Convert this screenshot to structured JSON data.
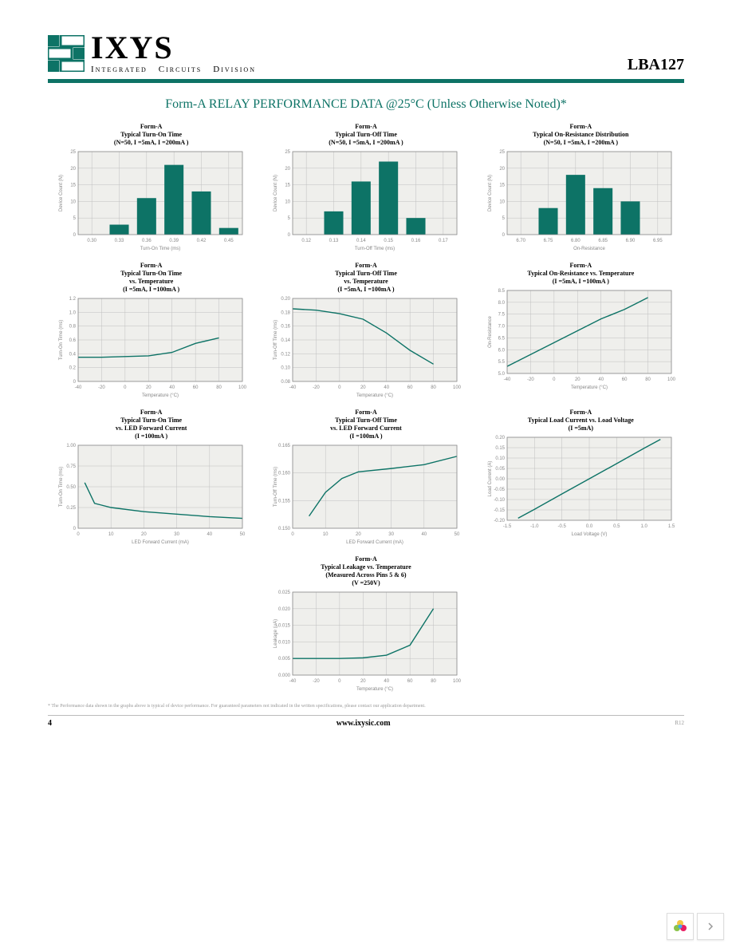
{
  "brand_color": "#0d7366",
  "logo": {
    "name": "IXYS",
    "tagline_words": [
      "Integrated",
      "Circuits",
      "Division"
    ]
  },
  "part_number": "LBA127",
  "page_title": "Form-A RELAY PERFORMANCE DATA @25°C (Unless Otherwise Noted)*",
  "footnote": "* The Performance data shown in the graphs above is typical of device performance. For guaranteed parameters not indicated in the written specifications, please contact our application department.",
  "footer": {
    "page": "4",
    "url": "www.ixysic.com",
    "rev": "R12"
  },
  "chart_common": {
    "plot_bg": "#efefec",
    "grid_color": "#bfbfbf",
    "bar_color": "#0d7366",
    "line_color": "#0d7366",
    "text_color": "#888888",
    "title_fontsize": 8,
    "tick_fontsize": 6
  },
  "charts": [
    {
      "id": "c1",
      "type": "bar",
      "title_lines": [
        "Form-A",
        "Typical Turn-On Time",
        "(N=50, I  =5mA, I  =200mA   )"
      ],
      "xticks": [
        "0.30",
        "0.33",
        "0.36",
        "0.39",
        "0.42",
        "0.45"
      ],
      "yticks": [
        "0",
        "5",
        "10",
        "15",
        "20",
        "25"
      ],
      "ymax": 25,
      "values": [
        0,
        3,
        11,
        21,
        13,
        2
      ],
      "xlabel": "Turn-On Time (ms)",
      "ylabel": "Device Count (N)"
    },
    {
      "id": "c2",
      "type": "bar",
      "title_lines": [
        "Form-A",
        "Typical Turn-Off Time",
        "(N=50, I  =5mA, I  =200mA   )"
      ],
      "xticks": [
        "0.12",
        "0.13",
        "0.14",
        "0.15",
        "0.16",
        "0.17"
      ],
      "yticks": [
        "0",
        "5",
        "10",
        "15",
        "20",
        "25"
      ],
      "ymax": 25,
      "values": [
        0,
        7,
        16,
        22,
        5,
        0
      ],
      "xlabel": "Turn-Off Time (ms)",
      "ylabel": "Device Count (N)"
    },
    {
      "id": "c3",
      "type": "bar",
      "title_lines": [
        "Form-A",
        "Typical On-Resistance Distribution",
        "(N=50, I  =5mA, I  =200mA   )"
      ],
      "xticks": [
        "6.70",
        "6.75",
        "6.80",
        "6.85",
        "6.90",
        "6.95"
      ],
      "yticks": [
        "0",
        "5",
        "10",
        "15",
        "20",
        "25"
      ],
      "ymax": 25,
      "values": [
        0,
        8,
        18,
        14,
        10,
        0
      ],
      "xlabel": "On-Resistance",
      "ylabel": "Device Count (N)"
    },
    {
      "id": "c4",
      "type": "line",
      "title_lines": [
        "Form-A",
        "Typical Turn-On Time",
        "vs. Temperature",
        "(I  =5mA, I   =100mA   )"
      ],
      "xticks": [
        "-40",
        "-20",
        "0",
        "20",
        "40",
        "60",
        "80",
        "100"
      ],
      "xmin": -40,
      "xmax": 100,
      "yticks": [
        "0",
        "0.2",
        "0.4",
        "0.6",
        "0.8",
        "1.0",
        "1.2"
      ],
      "ymin": 0,
      "ymax": 1.2,
      "points": [
        [
          -40,
          0.35
        ],
        [
          -20,
          0.35
        ],
        [
          0,
          0.36
        ],
        [
          20,
          0.37
        ],
        [
          40,
          0.42
        ],
        [
          60,
          0.55
        ],
        [
          80,
          0.63
        ]
      ],
      "xlabel": "Temperature (°C)",
      "ylabel": "Turn-On Time  (ms)"
    },
    {
      "id": "c5",
      "type": "line",
      "title_lines": [
        "Form-A",
        "Typical Turn-Off Time",
        "vs. Temperature",
        "(I  =5mA, I   =100mA   )"
      ],
      "xticks": [
        "-40",
        "-20",
        "0",
        "20",
        "40",
        "60",
        "80",
        "100"
      ],
      "xmin": -40,
      "xmax": 100,
      "yticks": [
        "0.08",
        "0.10",
        "0.12",
        "0.14",
        "0.16",
        "0.18",
        "0.20"
      ],
      "ymin": 0.08,
      "ymax": 0.2,
      "points": [
        [
          -40,
          0.185
        ],
        [
          -20,
          0.183
        ],
        [
          0,
          0.178
        ],
        [
          20,
          0.17
        ],
        [
          40,
          0.15
        ],
        [
          60,
          0.125
        ],
        [
          80,
          0.105
        ]
      ],
      "xlabel": "Temperature (°C)",
      "ylabel": "Turn-Off Time  (ms)"
    },
    {
      "id": "c6",
      "type": "line",
      "title_lines": [
        "Form-A",
        "Typical On-Resistance vs. Temperature",
        "(I  =5mA, I   =100mA   )"
      ],
      "xticks": [
        "-40",
        "-20",
        "0",
        "20",
        "40",
        "60",
        "80",
        "100"
      ],
      "xmin": -40,
      "xmax": 100,
      "yticks": [
        "5.0",
        "5.5",
        "6.0",
        "6.5",
        "7.0",
        "7.5",
        "8.0",
        "8.5"
      ],
      "ymin": 5.0,
      "ymax": 8.5,
      "points": [
        [
          -40,
          5.3
        ],
        [
          -20,
          5.8
        ],
        [
          0,
          6.3
        ],
        [
          20,
          6.8
        ],
        [
          40,
          7.3
        ],
        [
          60,
          7.7
        ],
        [
          80,
          8.2
        ]
      ],
      "xlabel": "Temperature (°C)",
      "ylabel": "On-Resistance"
    },
    {
      "id": "c7",
      "type": "line",
      "title_lines": [
        "Form-A",
        "Typical Turn-On Time",
        "vs. LED Forward Current",
        "(I  =100mA   )"
      ],
      "xticks": [
        "0",
        "10",
        "20",
        "30",
        "40",
        "50"
      ],
      "xmin": 0,
      "xmax": 50,
      "yticks": [
        "0",
        "0.25",
        "0.50",
        "0.75",
        "1.00"
      ],
      "ymin": 0,
      "ymax": 1.0,
      "points": [
        [
          2,
          0.55
        ],
        [
          5,
          0.3
        ],
        [
          7,
          0.28
        ],
        [
          10,
          0.25
        ],
        [
          20,
          0.2
        ],
        [
          30,
          0.17
        ],
        [
          40,
          0.14
        ],
        [
          50,
          0.12
        ]
      ],
      "xlabel": "LED Forward Current (mA)",
      "ylabel": "Turn-On Time  (ms)"
    },
    {
      "id": "c8",
      "type": "line",
      "title_lines": [
        "Form-A",
        "Typical Turn-Off Time",
        "vs. LED Forward Current",
        "(I  =100mA   )"
      ],
      "xticks": [
        "0",
        "10",
        "20",
        "30",
        "40",
        "50"
      ],
      "xmin": 0,
      "xmax": 50,
      "yticks": [
        "0.150",
        "0.155",
        "0.160",
        "0.165"
      ],
      "ymin": 0.15,
      "ymax": 0.165,
      "points": [
        [
          5,
          0.1522
        ],
        [
          10,
          0.1565
        ],
        [
          15,
          0.159
        ],
        [
          20,
          0.1602
        ],
        [
          30,
          0.1608
        ],
        [
          40,
          0.1615
        ],
        [
          50,
          0.163
        ]
      ],
      "xlabel": "LED Forward Current (mA)",
      "ylabel": "Turn-Off Time  (ms)"
    },
    {
      "id": "c9",
      "type": "line",
      "title_lines": [
        "Form-A",
        "Typical Load Current vs. Load Voltage",
        "(I  =5mA)"
      ],
      "xticks": [
        "-1.5",
        "-1.0",
        "-0.5",
        "0.0",
        "0.5",
        "1.0",
        "1.5"
      ],
      "xmin": -1.5,
      "xmax": 1.5,
      "yticks": [
        "-0.20",
        "-0.15",
        "-0.10",
        "-0.05",
        "0.00",
        "0.05",
        "0.10",
        "0.15",
        "0.20"
      ],
      "ymin": -0.2,
      "ymax": 0.2,
      "points": [
        [
          -1.3,
          -0.19
        ],
        [
          -1.0,
          -0.147
        ],
        [
          -0.5,
          -0.073
        ],
        [
          0,
          0
        ],
        [
          0.5,
          0.073
        ],
        [
          1.0,
          0.147
        ],
        [
          1.3,
          0.19
        ]
      ],
      "xlabel": "Load Voltage (V)",
      "ylabel": "Load Current (A)"
    },
    {
      "id": "c10",
      "type": "line",
      "title_lines": [
        "Form-A",
        "Typical Leakage vs. Temperature",
        "(Measured Across Pins 5 & 6)",
        "(V  =250V)"
      ],
      "xticks": [
        "-40",
        "-20",
        "0",
        "20",
        "40",
        "60",
        "80",
        "100"
      ],
      "xmin": -40,
      "xmax": 100,
      "yticks": [
        "0.000",
        "0.005",
        "0.010",
        "0.015",
        "0.020",
        "0.025"
      ],
      "ymin": 0,
      "ymax": 0.025,
      "points": [
        [
          -40,
          0.005
        ],
        [
          -20,
          0.005
        ],
        [
          0,
          0.005
        ],
        [
          20,
          0.0052
        ],
        [
          40,
          0.006
        ],
        [
          60,
          0.009
        ],
        [
          80,
          0.02
        ]
      ],
      "xlabel": "Temperature (°C)",
      "ylabel": "Leakage  (μA)"
    }
  ]
}
